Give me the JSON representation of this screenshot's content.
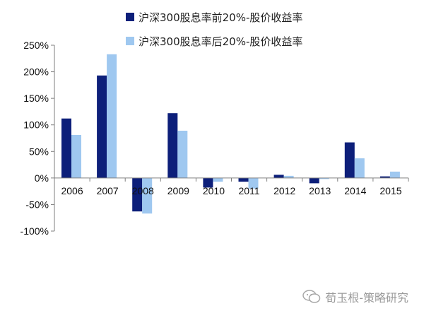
{
  "chart_data": {
    "type": "bar",
    "categories": [
      "2006",
      "2007",
      "2008",
      "2009",
      "2010",
      "2011",
      "2012",
      "2013",
      "2014",
      "2015"
    ],
    "series": [
      {
        "name": "沪深300股息率前20%-股价收益率",
        "color": "#0d1f7a",
        "values": [
          112,
          193,
          -63,
          122,
          -18,
          -7,
          6,
          -10,
          67,
          3
        ]
      },
      {
        "name": "沪深300股息率后20%-股价收益率",
        "color": "#9fc8f0",
        "values": [
          81,
          233,
          -67,
          89,
          -7,
          -20,
          4,
          -2,
          37,
          12
        ]
      }
    ],
    "ylim": [
      -100,
      250
    ],
    "yticks": [
      250,
      200,
      150,
      100,
      50,
      0,
      -50,
      -100
    ],
    "ytick_labels": [
      "250%",
      "200%",
      "150%",
      "100%",
      "50%",
      "0%",
      "-50%",
      "-100%"
    ],
    "grid": false,
    "legend": "top"
  },
  "watermark": {
    "text": "荀玉根-策略研究",
    "icon": "wechat-icon"
  }
}
